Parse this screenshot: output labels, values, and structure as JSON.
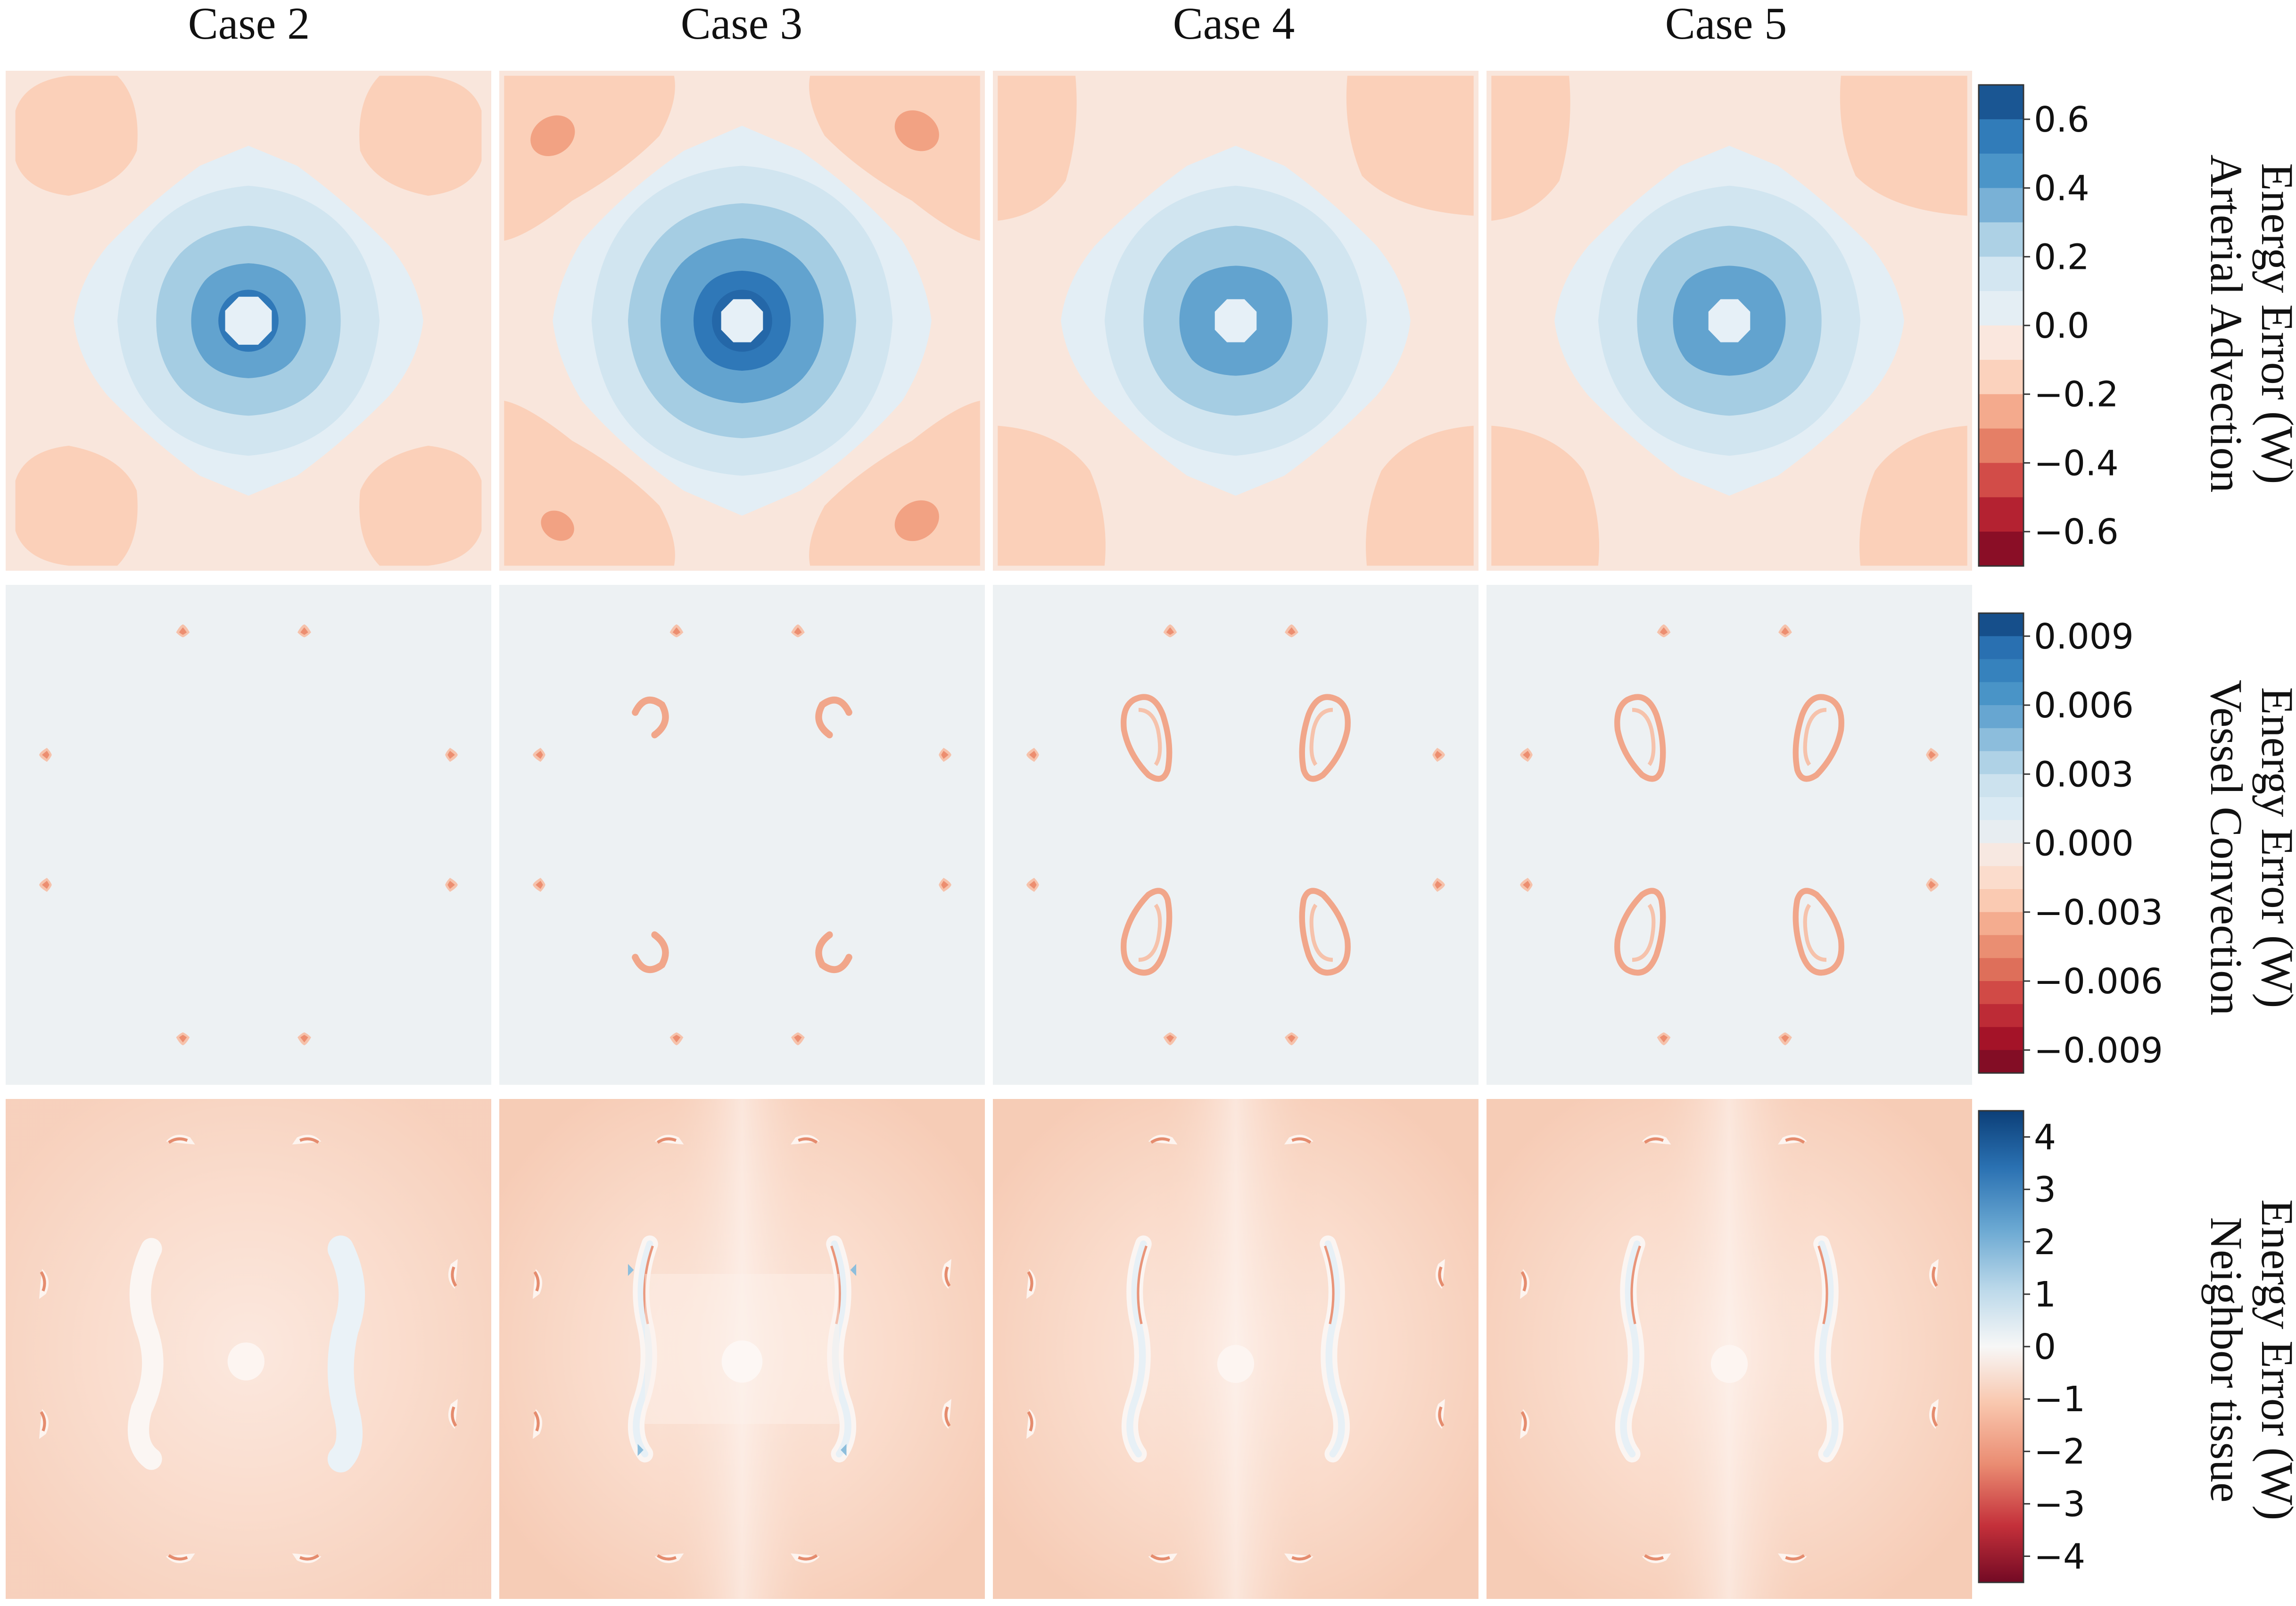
{
  "columns": [
    "Case 2",
    "Case 3",
    "Case 4",
    "Case 5"
  ],
  "chart_data": [
    {
      "type": "heatmap",
      "row": "arterial-advection",
      "colorbar_label_lines": [
        "Arterial Advection",
        "Energy Error (W)"
      ],
      "colorbar_ticks": [
        "0.6",
        "0.4",
        "0.2",
        "0.0",
        "−0.2",
        "−0.4",
        "−0.6"
      ],
      "colorbar_tick_values": [
        0.6,
        0.4,
        0.2,
        0.0,
        -0.2,
        -0.4,
        -0.6
      ],
      "vmin": -0.7,
      "vmax": 0.7,
      "colormap": "RdBu",
      "panels": [
        "Case 2",
        "Case 3",
        "Case 4",
        "Case 5"
      ]
    },
    {
      "type": "heatmap",
      "row": "vessel-convection",
      "colorbar_label_lines": [
        "Vessel Convection",
        "Energy Error (W)"
      ],
      "colorbar_ticks": [
        "0.009",
        "0.006",
        "0.003",
        "0.000",
        "−0.003",
        "−0.006",
        "−0.009"
      ],
      "colorbar_tick_values": [
        0.009,
        0.006,
        0.003,
        0.0,
        -0.003,
        -0.006,
        -0.009
      ],
      "vmin": -0.01,
      "vmax": 0.01,
      "colormap": "RdBu",
      "panels": [
        "Case 2",
        "Case 3",
        "Case 4",
        "Case 5"
      ]
    },
    {
      "type": "heatmap",
      "row": "neighbor-tissue",
      "colorbar_label_lines": [
        "Neighbor tissue",
        "Energy Error (W)"
      ],
      "colorbar_ticks": [
        "4",
        "3",
        "2",
        "1",
        "0",
        "−1",
        "−2",
        "−3",
        "−4"
      ],
      "colorbar_tick_values": [
        4,
        3,
        2,
        1,
        0,
        -1,
        -2,
        -3,
        -4
      ],
      "vmin": -4.5,
      "vmax": 4.5,
      "colormap": "RdBu",
      "panels": [
        "Case 2",
        "Case 3",
        "Case 4",
        "Case 5"
      ]
    }
  ],
  "colors": {
    "deep_blue": "#0c3f78",
    "blue": "#2a71b2",
    "mid_blue": "#3d8cc3",
    "light_blue": "#92c5de",
    "pale_blue": "#d1e5f0",
    "neutral": "#f7f7f7",
    "pale_red": "#fbe7dd",
    "light_red": "#fbd0b9",
    "red": "#d6604d",
    "deep_red": "#730a24",
    "vessel_bg": "#edf1f3",
    "tissue_bg": "#f8d9c9"
  }
}
